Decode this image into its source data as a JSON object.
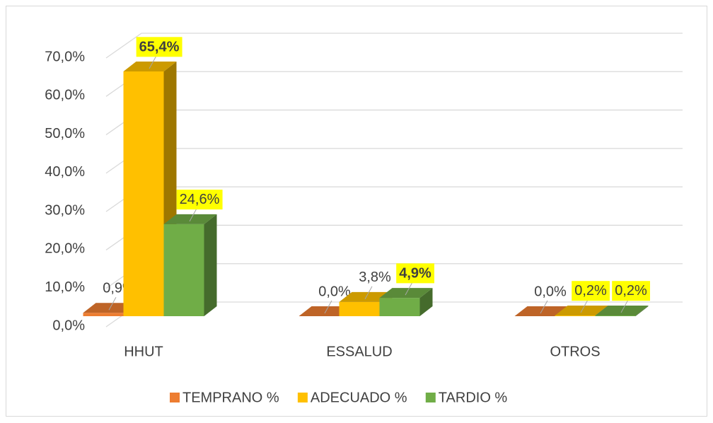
{
  "chart_data": {
    "type": "bar3d",
    "categories": [
      "HHUT",
      "ESSALUD",
      "OTROS"
    ],
    "series": [
      {
        "name": "TEMPRANO %",
        "color": "#ed7d31",
        "values": [
          0.9,
          0,
          0
        ],
        "value_labels": [
          "0,9%",
          "0,0%",
          "0,0%"
        ],
        "highlight": [
          false,
          false,
          false
        ],
        "bold": [
          false,
          false,
          false
        ]
      },
      {
        "name": "ADECUADO %",
        "color": "#ffc000",
        "values": [
          65.4,
          3.8,
          0.2
        ],
        "value_labels": [
          "65,4%",
          "3,8%",
          "0,2%"
        ],
        "highlight": [
          true,
          false,
          true
        ],
        "bold": [
          true,
          false,
          false
        ]
      },
      {
        "name": "TARDIO %",
        "color": "#70ad47",
        "values": [
          24.6,
          4.9,
          0.2
        ],
        "value_labels": [
          "24,6%",
          "4,9%",
          "0,2%"
        ],
        "highlight": [
          true,
          true,
          true
        ],
        "bold": [
          false,
          true,
          false
        ]
      }
    ],
    "ylim": [
      0,
      70
    ],
    "yticks": [
      {
        "value": 0,
        "label": "0,0%"
      },
      {
        "value": 10,
        "label": "10,0%"
      },
      {
        "value": 20,
        "label": "20,0%"
      },
      {
        "value": 30,
        "label": "30,0%"
      },
      {
        "value": 40,
        "label": "40,0%"
      },
      {
        "value": 50,
        "label": "50,0%"
      },
      {
        "value": 60,
        "label": "60,0%"
      },
      {
        "value": 70,
        "label": "70,0%"
      }
    ],
    "grid": true,
    "legend": "bottom"
  }
}
